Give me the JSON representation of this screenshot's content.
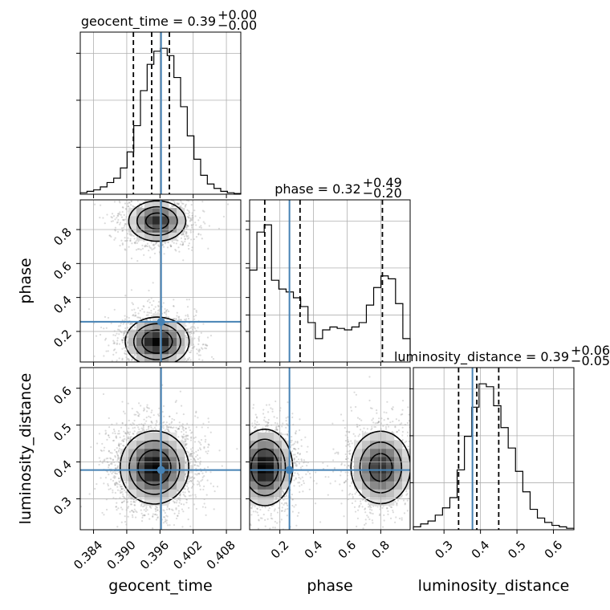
{
  "chart_data": {
    "type": "corner",
    "parameters": [
      "geocent_time",
      "phase",
      "luminosity_distance"
    ],
    "truths": {
      "geocent_time": 0.3962,
      "phase": 0.257,
      "luminosity_distance": 0.378
    },
    "ranges": {
      "geocent_time": [
        0.3816,
        0.4106
      ],
      "phase": [
        0.02,
        0.975
      ],
      "luminosity_distance": [
        0.216,
        0.656
      ]
    },
    "ticks": {
      "geocent_time": {
        "values": [
          0.384,
          0.39,
          0.396,
          0.402,
          0.408
        ],
        "labels": [
          "0.384",
          "0.390",
          "0.396",
          "0.402",
          "0.408"
        ]
      },
      "phase": {
        "values": [
          0.2,
          0.4,
          0.6,
          0.8
        ],
        "labels": [
          "0.2",
          "0.4",
          "0.6",
          "0.8"
        ]
      },
      "luminosity_distance": {
        "values": [
          0.3,
          0.4,
          0.5,
          0.6
        ],
        "labels": [
          "0.3",
          "0.4",
          "0.5",
          "0.6"
        ]
      }
    },
    "xlabels": [
      "geocent_time",
      "phase",
      "luminosity_distance"
    ],
    "ylabels": [
      "phase",
      "luminosity_distance"
    ],
    "titles": [
      {
        "param": "geocent_time",
        "text": "geocent_time = 0.39",
        "sup": "+0.00",
        "sub": "−0.00"
      },
      {
        "param": "phase",
        "text": "phase = 0.32",
        "sup": "+0.49",
        "sub": "−0.20"
      },
      {
        "param": "luminosity_distance",
        "text": "luminosity_distance = 0.39",
        "sup": "+0.06",
        "sub": "−0.05"
      }
    ],
    "quantiles": {
      "geocent_time": [
        0.3912,
        0.3945,
        0.3977
      ],
      "phase": [
        0.11,
        0.32,
        0.81
      ],
      "luminosity_distance": [
        0.34,
        0.39,
        0.45
      ]
    },
    "histograms": {
      "geocent_time": [
        0.01,
        0.02,
        0.03,
        0.05,
        0.08,
        0.11,
        0.18,
        0.29,
        0.47,
        0.71,
        0.89,
        0.98,
        1.0,
        0.95,
        0.8,
        0.6,
        0.4,
        0.24,
        0.13,
        0.07,
        0.04,
        0.02,
        0.01,
        0.005
      ],
      "phase": [
        0.63,
        0.89,
        0.94,
        0.56,
        0.5,
        0.48,
        0.44,
        0.38,
        0.27,
        0.16,
        0.22,
        0.24,
        0.23,
        0.22,
        0.24,
        0.27,
        0.39,
        0.51,
        0.59,
        0.57,
        0.4,
        0.16
      ],
      "luminosity_distance": [
        0.02,
        0.04,
        0.06,
        0.1,
        0.15,
        0.22,
        0.41,
        0.64,
        0.84,
        1.0,
        0.98,
        0.85,
        0.7,
        0.56,
        0.4,
        0.26,
        0.14,
        0.08,
        0.05,
        0.03,
        0.02,
        0.01
      ]
    },
    "histogram_ymax_ticks": 3,
    "posterior_2d": {
      "phase_vs_geocent_time": {
        "modes": [
          {
            "x": 0.3955,
            "y": 0.14,
            "sx": 0.0028,
            "sy": 0.07,
            "w": 1.0
          },
          {
            "x": 0.3955,
            "y": 0.85,
            "sx": 0.0026,
            "sy": 0.06,
            "w": 0.85
          }
        ]
      },
      "luminosity_distance_vs_geocent_time": {
        "modes": [
          {
            "x": 0.395,
            "y": 0.385,
            "sx": 0.003,
            "sy": 0.048,
            "w": 1.0
          }
        ]
      },
      "luminosity_distance_vs_phase": {
        "modes": [
          {
            "x": 0.11,
            "y": 0.385,
            "sx": 0.08,
            "sy": 0.05,
            "w": 1.0
          },
          {
            "x": 0.8,
            "y": 0.385,
            "sx": 0.09,
            "sy": 0.05,
            "w": 0.8
          }
        ]
      }
    },
    "contour_levels": 3,
    "colors": {
      "truth": "#4682b4",
      "hist": "#000000",
      "grid": "#b0b0b0",
      "contour": "#000000",
      "points": "#7f7f7f"
    },
    "grid": true
  }
}
